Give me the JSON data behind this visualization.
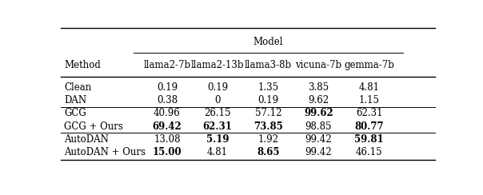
{
  "title": "Model",
  "col_headers": [
    "llama2-7b",
    "llama2-13b",
    "llama3-8b",
    "vicuna-7b",
    "gemma-7b"
  ],
  "rows": [
    {
      "method": "Clean",
      "vals": [
        "0.19",
        "0.19",
        "1.35",
        "3.85",
        "4.81"
      ],
      "bold": [
        false,
        false,
        false,
        false,
        false
      ]
    },
    {
      "method": "DAN",
      "vals": [
        "0.38",
        "0",
        "0.19",
        "9.62",
        "1.15"
      ],
      "bold": [
        false,
        false,
        false,
        false,
        false
      ]
    },
    {
      "method": "GCG",
      "vals": [
        "40.96",
        "26.15",
        "57.12",
        "99.62",
        "62.31"
      ],
      "bold": [
        false,
        false,
        false,
        true,
        false
      ]
    },
    {
      "method": "GCG + Ours",
      "vals": [
        "69.42",
        "62.31",
        "73.85",
        "98.85",
        "80.77"
      ],
      "bold": [
        true,
        true,
        true,
        false,
        true
      ]
    },
    {
      "method": "AutoDAN",
      "vals": [
        "13.08",
        "5.19",
        "1.92",
        "99.42",
        "59.81"
      ],
      "bold": [
        false,
        true,
        false,
        false,
        true
      ]
    },
    {
      "method": "AutoDAN + Ours",
      "vals": [
        "15.00",
        "4.81",
        "8.65",
        "99.42",
        "46.15"
      ],
      "bold": [
        true,
        false,
        true,
        false,
        false
      ]
    }
  ],
  "group_sep_after": [
    1,
    3
  ],
  "figsize": [
    6.04,
    2.44
  ],
  "dpi": 100,
  "fontsize": 8.5,
  "font_family": "serif"
}
